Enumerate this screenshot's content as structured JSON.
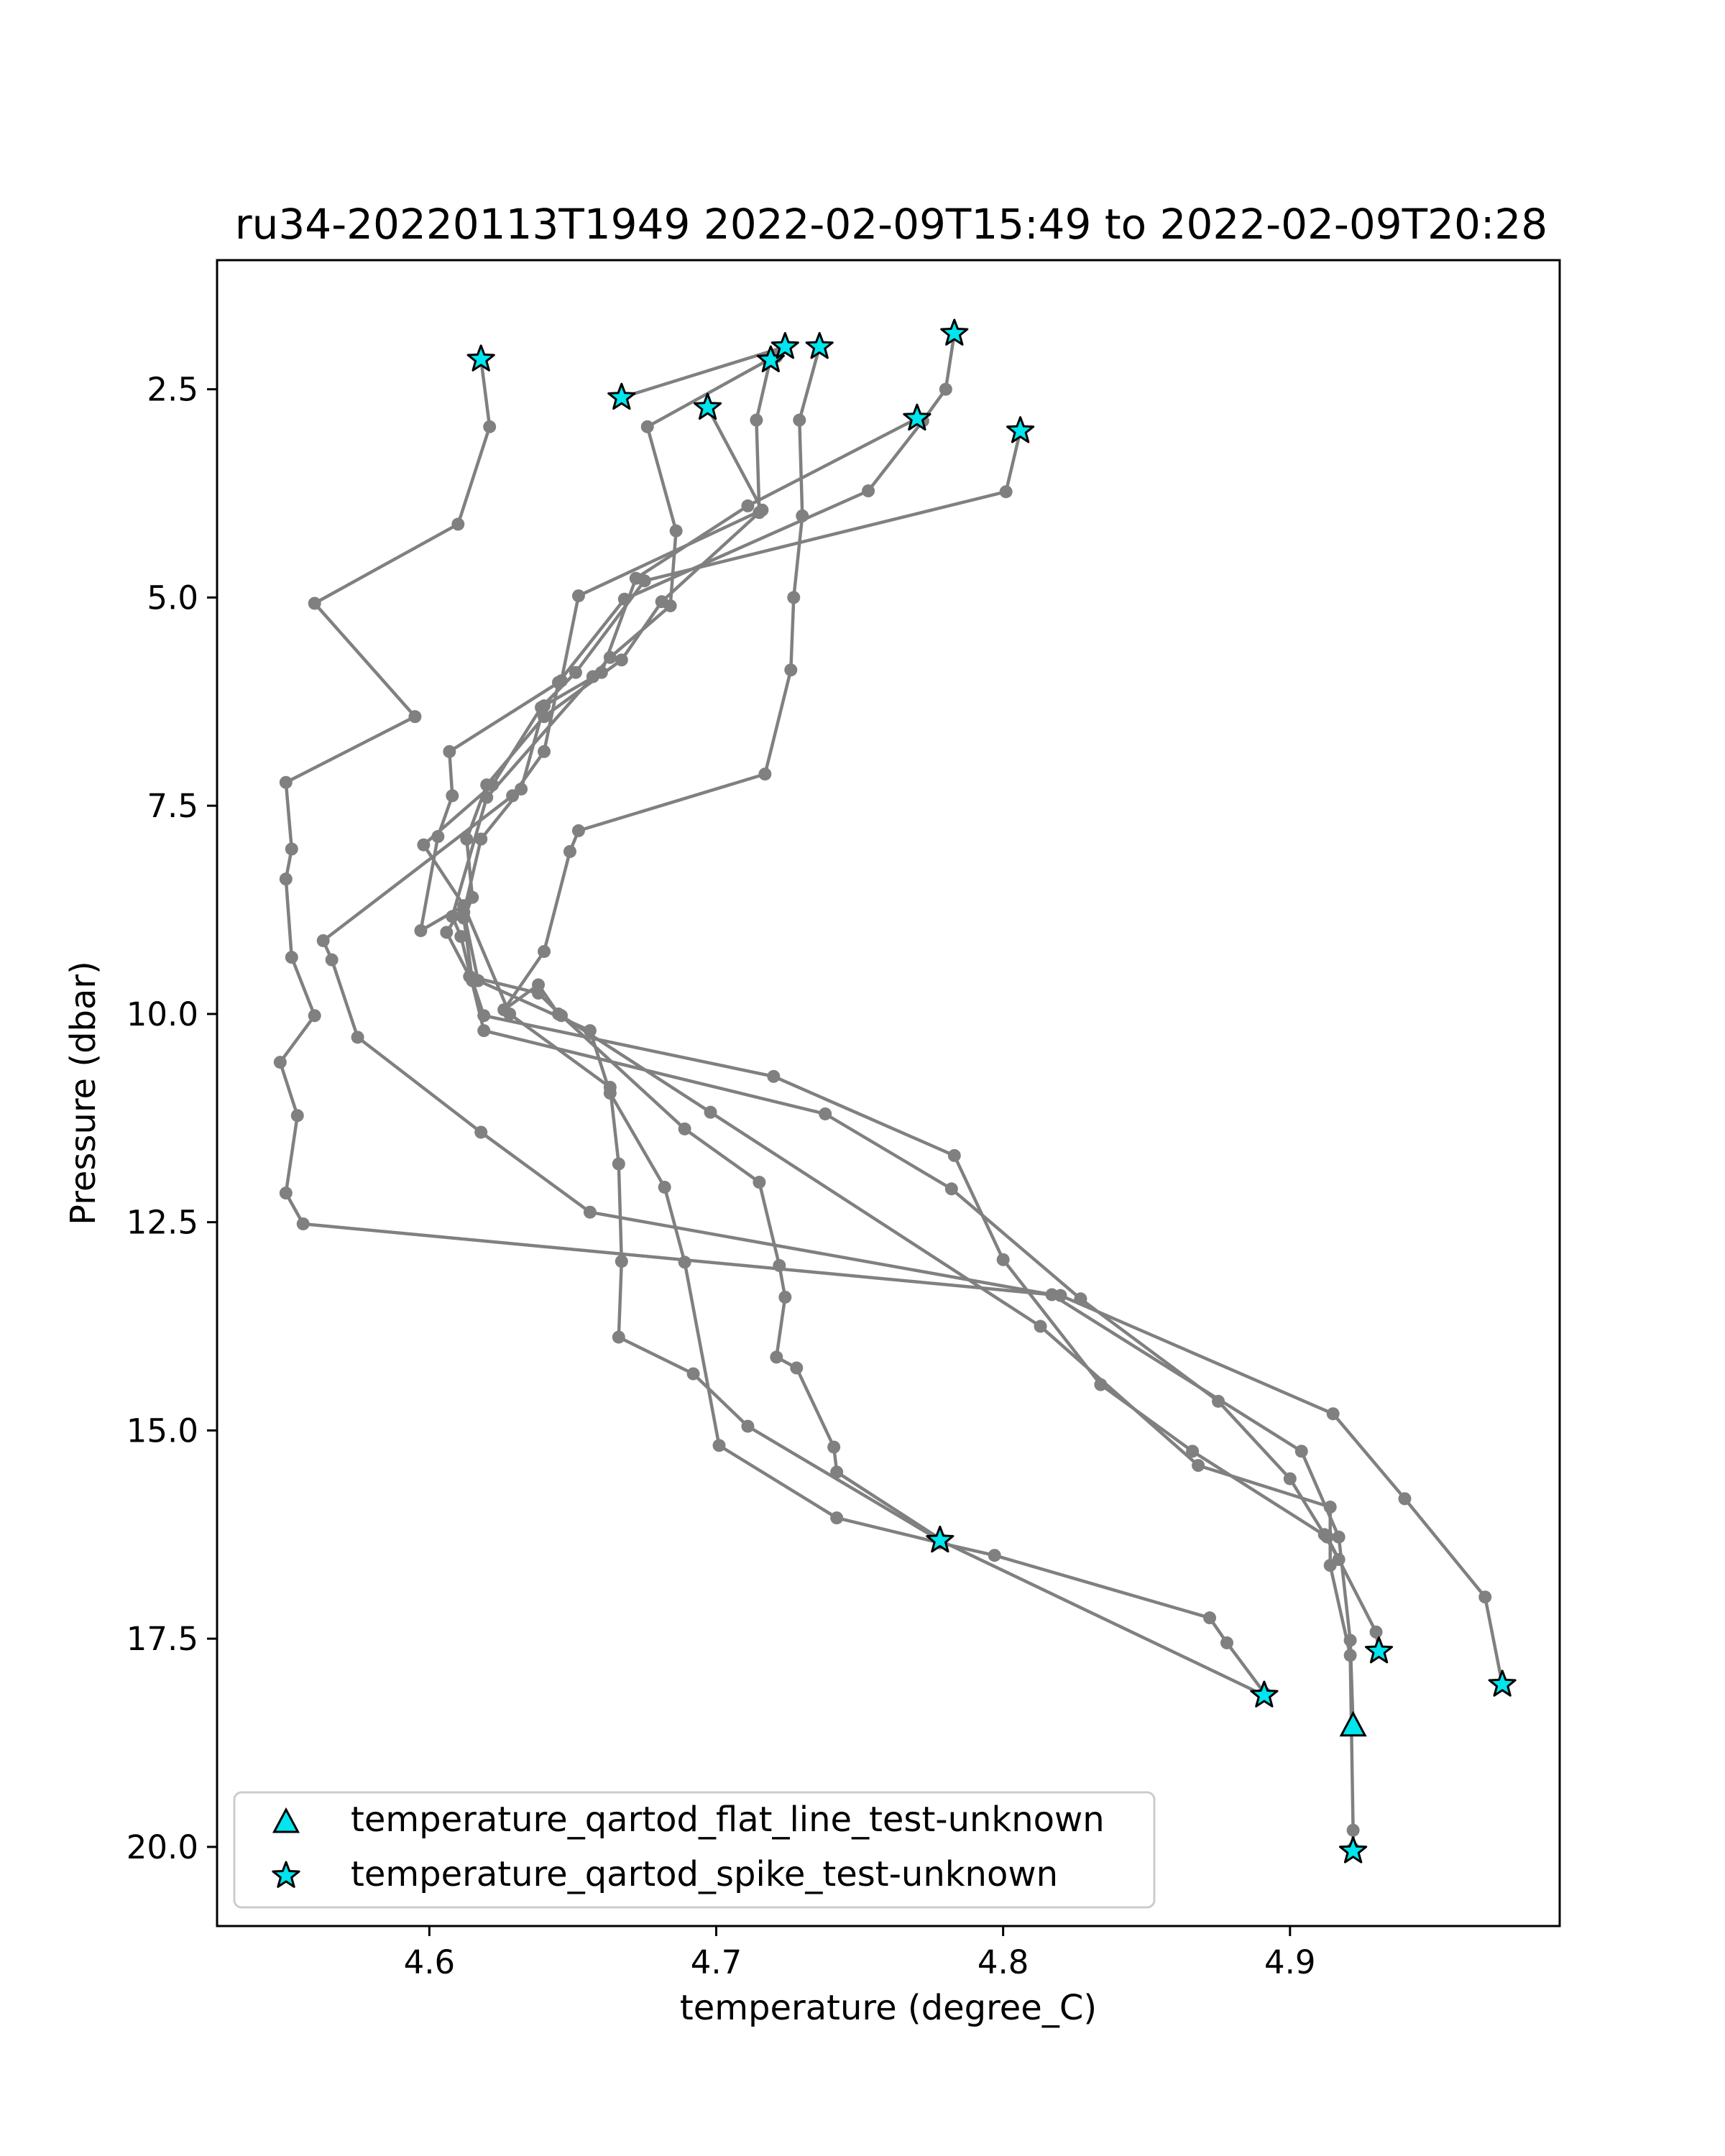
{
  "chart_data": {
    "type": "line",
    "title": "ru34-20220113T1949 2022-02-09T15:49 to 2022-02-09T20:28",
    "xlabel": "temperature (degree_C)",
    "ylabel": "Pressure (dbar)",
    "xlim": [
      4.526,
      4.994
    ],
    "ylim": [
      20.95,
      0.95
    ],
    "y_inverted": true,
    "xticks": [
      "4.6",
      "4.7",
      "4.8",
      "4.9"
    ],
    "xtick_values": [
      4.6,
      4.7,
      4.8,
      4.9
    ],
    "yticks": [
      "2.5",
      "5.0",
      "7.5",
      "10.0",
      "12.5",
      "15.0",
      "17.5",
      "20.0"
    ],
    "ytick_values": [
      2.5,
      5.0,
      7.5,
      10.0,
      12.5,
      15.0,
      17.5,
      20.0
    ],
    "line_color": "#808080",
    "marker_color": "#00e5ee",
    "legend_position": "lower-left",
    "legend": [
      {
        "label": "temperature_qartod_flat_line_test-unknown",
        "marker": "triangle"
      },
      {
        "label": "temperature_qartod_spike_test-unknown",
        "marker": "star"
      }
    ],
    "series": [
      {
        "points": [
          [
            4.618,
            2.14
          ],
          [
            4.621,
            2.95
          ],
          [
            4.61,
            4.12
          ],
          [
            4.56,
            5.07
          ],
          [
            4.595,
            6.43
          ],
          [
            4.55,
            7.22
          ],
          [
            4.552,
            8.02
          ],
          [
            4.55,
            8.38
          ],
          [
            4.552,
            9.32
          ],
          [
            4.56,
            10.02
          ],
          [
            4.548,
            10.58
          ],
          [
            4.554,
            11.22
          ],
          [
            4.55,
            12.15
          ],
          [
            4.556,
            12.52
          ],
          [
            4.82,
            13.38
          ],
          [
            4.915,
            14.8
          ],
          [
            4.94,
            15.82
          ],
          [
            4.968,
            17.0
          ],
          [
            4.974,
            18.05
          ]
        ]
      },
      {
        "points": [
          [
            4.783,
            1.83
          ],
          [
            4.78,
            2.5
          ],
          [
            4.772,
            2.88
          ],
          [
            4.753,
            3.72
          ],
          [
            4.668,
            5.02
          ],
          [
            4.645,
            6.02
          ],
          [
            4.64,
            6.85
          ],
          [
            4.629,
            7.38
          ],
          [
            4.563,
            9.12
          ],
          [
            4.566,
            9.35
          ],
          [
            4.575,
            10.28
          ],
          [
            4.618,
            11.42
          ],
          [
            4.656,
            12.38
          ],
          [
            4.817,
            13.37
          ],
          [
            4.904,
            15.25
          ],
          [
            4.917,
            16.28
          ],
          [
            4.921,
            17.52
          ],
          [
            4.922,
            18.55
          ]
        ]
      },
      {
        "points": [
          [
            4.736,
            1.99
          ],
          [
            4.729,
            2.87
          ],
          [
            4.73,
            4.02
          ],
          [
            4.727,
            5.0
          ],
          [
            4.726,
            5.87
          ],
          [
            4.717,
            7.12
          ],
          [
            4.652,
            7.8
          ],
          [
            4.649,
            8.05
          ],
          [
            4.64,
            9.25
          ],
          [
            4.626,
            9.95
          ],
          [
            4.638,
            9.65
          ],
          [
            4.645,
            10.0
          ],
          [
            4.698,
            11.18
          ],
          [
            4.813,
            13.75
          ],
          [
            4.868,
            15.42
          ],
          [
            4.914,
            15.92
          ],
          [
            4.914,
            16.62
          ],
          [
            4.921,
            17.7
          ],
          [
            4.922,
            19.8
          ],
          [
            4.922,
            20.02
          ]
        ]
      },
      {
        "points": [
          [
            4.719,
            2.12
          ],
          [
            4.714,
            2.87
          ],
          [
            4.715,
            3.98
          ],
          [
            4.681,
            5.05
          ],
          [
            4.667,
            5.75
          ],
          [
            4.64,
            6.43
          ],
          [
            4.62,
            7.25
          ],
          [
            4.613,
            7.9
          ],
          [
            4.615,
            8.6
          ],
          [
            4.612,
            8.85
          ],
          [
            4.615,
            9.6
          ],
          [
            4.619,
            10.02
          ],
          [
            4.72,
            10.75
          ],
          [
            4.783,
            11.7
          ],
          [
            4.8,
            12.95
          ],
          [
            4.834,
            14.45
          ],
          [
            4.866,
            15.25
          ],
          [
            4.913,
            16.28
          ],
          [
            4.93,
            17.42
          ],
          [
            4.931,
            17.65
          ]
        ]
      },
      {
        "points": [
          [
            4.667,
            2.6
          ],
          [
            4.724,
            1.99
          ],
          [
            4.721,
            2.11
          ],
          [
            4.718,
            2.15
          ],
          [
            4.676,
            2.95
          ],
          [
            4.686,
            4.2
          ],
          [
            4.684,
            5.1
          ],
          [
            4.663,
            5.72
          ],
          [
            4.657,
            5.95
          ],
          [
            4.62,
            7.4
          ],
          [
            4.608,
            8.83
          ],
          [
            4.611,
            9.07
          ],
          [
            4.619,
            10.2
          ],
          [
            4.738,
            11.2
          ],
          [
            4.782,
            12.1
          ],
          [
            4.827,
            13.42
          ],
          [
            4.875,
            14.65
          ],
          [
            4.9,
            15.58
          ],
          [
            4.912,
            16.25
          ],
          [
            4.917,
            16.55
          ]
        ]
      },
      {
        "points": [
          [
            4.697,
            2.72
          ],
          [
            4.716,
            3.95
          ],
          [
            4.652,
            4.98
          ],
          [
            4.646,
            6.0
          ],
          [
            4.607,
            6.85
          ],
          [
            4.608,
            7.38
          ],
          [
            4.603,
            7.87
          ],
          [
            4.597,
            9.0
          ],
          [
            4.612,
            8.7
          ],
          [
            4.628,
            10.0
          ],
          [
            4.663,
            10.88
          ],
          [
            4.666,
            11.8
          ],
          [
            4.667,
            12.97
          ],
          [
            4.666,
            13.88
          ],
          [
            4.692,
            14.32
          ],
          [
            4.711,
            14.95
          ],
          [
            4.778,
            16.32
          ],
          [
            4.891,
            18.18
          ]
        ]
      },
      {
        "points": [
          [
            4.77,
            2.85
          ],
          [
            4.711,
            3.9
          ],
          [
            4.672,
            4.77
          ],
          [
            4.66,
            5.9
          ],
          [
            4.64,
            6.3
          ],
          [
            4.632,
            7.3
          ],
          [
            4.618,
            7.9
          ],
          [
            4.612,
            8.78
          ],
          [
            4.617,
            9.6
          ],
          [
            4.656,
            10.2
          ],
          [
            4.663,
            10.95
          ],
          [
            4.682,
            12.08
          ],
          [
            4.689,
            12.98
          ],
          [
            4.701,
            15.18
          ],
          [
            4.742,
            16.05
          ],
          [
            4.778,
            16.35
          ],
          [
            4.797,
            16.5
          ],
          [
            4.872,
            17.25
          ],
          [
            4.878,
            17.55
          ],
          [
            4.891,
            18.15
          ]
        ]
      },
      {
        "points": [
          [
            4.806,
            3.0
          ],
          [
            4.801,
            3.73
          ],
          [
            4.675,
            4.8
          ],
          [
            4.651,
            5.9
          ],
          [
            4.639,
            6.32
          ],
          [
            4.622,
            7.25
          ],
          [
            4.598,
            7.97
          ],
          [
            4.612,
            8.7
          ],
          [
            4.606,
            9.02
          ],
          [
            4.614,
            9.55
          ],
          [
            4.638,
            9.75
          ],
          [
            4.646,
            10.02
          ],
          [
            4.689,
            11.38
          ],
          [
            4.715,
            12.02
          ],
          [
            4.722,
            13.02
          ],
          [
            4.724,
            13.4
          ],
          [
            4.721,
            14.12
          ],
          [
            4.728,
            14.25
          ],
          [
            4.741,
            15.2
          ],
          [
            4.742,
            15.5
          ],
          [
            4.778,
            16.3
          ]
        ]
      }
    ],
    "flat_line_flags": [
      [
        4.922,
        18.55
      ]
    ],
    "spike_flags": [
      [
        4.618,
        2.14
      ],
      [
        4.667,
        2.6
      ],
      [
        4.697,
        2.72
      ],
      [
        4.719,
        2.15
      ],
      [
        4.724,
        1.99
      ],
      [
        4.736,
        1.99
      ],
      [
        4.77,
        2.85
      ],
      [
        4.783,
        1.83
      ],
      [
        4.806,
        3.0
      ],
      [
        4.778,
        16.32
      ],
      [
        4.891,
        18.18
      ],
      [
        4.931,
        17.65
      ],
      [
        4.974,
        18.05
      ],
      [
        4.922,
        20.05
      ]
    ]
  }
}
